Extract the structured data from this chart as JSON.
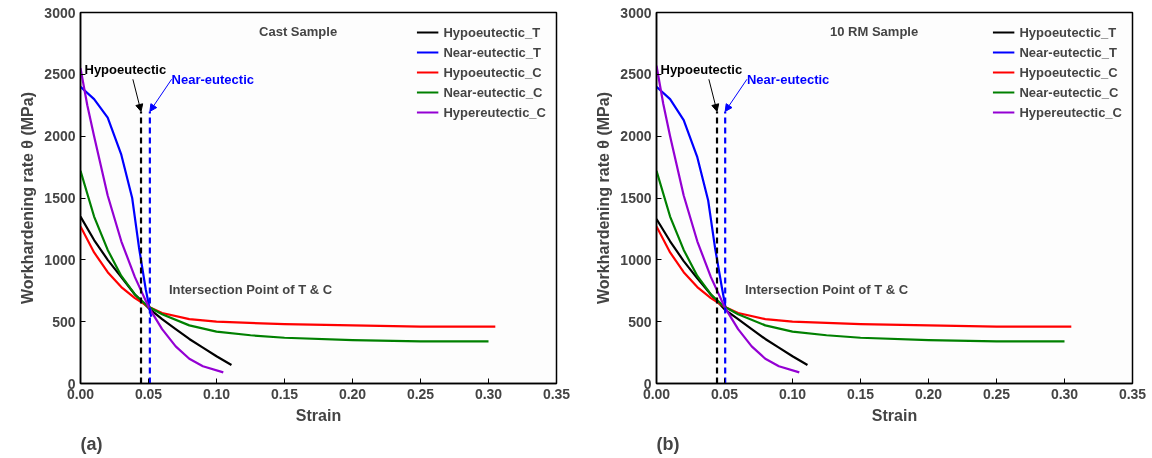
{
  "chart_data": [
    {
      "type": "line",
      "title": "Cast Sample",
      "xlabel": "Strain",
      "ylabel": "Workhardening rate θ (MPa)",
      "xlim": [
        0,
        0.35
      ],
      "xticks": [
        {
          "value": 0,
          "label": "0.00"
        },
        {
          "value": 0.05,
          "label": "0.05"
        },
        {
          "value": 0.1,
          "label": "0.10"
        },
        {
          "value": 0.15,
          "label": "0.15"
        },
        {
          "value": 0.2,
          "label": "0.20"
        },
        {
          "value": 0.25,
          "label": "0.25"
        },
        {
          "value": 0.3,
          "label": "0.30"
        },
        {
          "value": 0.35,
          "label": "0.35"
        }
      ],
      "ylim": [
        0,
        3000
      ],
      "yticks": [
        0,
        500,
        1000,
        1500,
        2000,
        2500,
        3000
      ],
      "grid": false,
      "legend": "top right",
      "annotations": [
        {
          "text": "Hypoeutectic",
          "x": 0.0445,
          "y": 2200
        },
        {
          "text": "Near-eutectic",
          "x": 0.051,
          "y": 2200
        },
        "Intersection Point of T & C",
        "(a)"
      ],
      "series": [
        {
          "name": "Hypoeutectic_T",
          "color": "#000000",
          "x": [
            0,
            0.01,
            0.02,
            0.03,
            0.04,
            0.05,
            0.06,
            0.07,
            0.08,
            0.09,
            0.1,
            0.111
          ],
          "values": [
            1350,
            1160,
            1000,
            860,
            720,
            610,
            520,
            440,
            360,
            290,
            220,
            150
          ]
        },
        {
          "name": "Near-eutectic_T",
          "color": "#0000ff",
          "x": [
            0,
            0.01,
            0.02,
            0.03,
            0.038,
            0.043,
            0.048,
            0.052
          ],
          "values": [
            2400,
            2300,
            2150,
            1850,
            1500,
            1100,
            760,
            540
          ]
        },
        {
          "name": "Hypoeutectic_C",
          "color": "#ff0000",
          "x": [
            0,
            0.01,
            0.02,
            0.03,
            0.04,
            0.05,
            0.06,
            0.08,
            0.1,
            0.15,
            0.2,
            0.25,
            0.305
          ],
          "values": [
            1270,
            1060,
            900,
            780,
            690,
            620,
            570,
            520,
            500,
            480,
            470,
            460,
            460
          ]
        },
        {
          "name": "Near-eutectic_C",
          "color": "#008000",
          "x": [
            0,
            0.01,
            0.02,
            0.03,
            0.04,
            0.05,
            0.06,
            0.08,
            0.1,
            0.125,
            0.15,
            0.2,
            0.25,
            0.3
          ],
          "values": [
            1720,
            1350,
            1080,
            870,
            720,
            620,
            560,
            470,
            420,
            390,
            370,
            350,
            340,
            340
          ]
        },
        {
          "name": "Hypereutectic_C",
          "color": "#9400d3",
          "x": [
            0,
            0.005,
            0.01,
            0.02,
            0.03,
            0.04,
            0.05,
            0.06,
            0.07,
            0.08,
            0.09,
            0.105
          ],
          "values": [
            2550,
            2250,
            2000,
            1520,
            1150,
            860,
            620,
            440,
            300,
            200,
            140,
            90
          ]
        },
        {
          "color": "#000000",
          "line_style": "dashed",
          "x": [
            0.0445,
            0.0445
          ],
          "values": [
            0,
            2200
          ]
        },
        {
          "color": "#0000ff",
          "line_style": "dashed",
          "x": [
            0.051,
            0.051
          ],
          "values": [
            0,
            2200
          ]
        }
      ]
    },
    {
      "type": "line",
      "title": "10 RM Sample",
      "xlabel": "Strain",
      "ylabel": "Workhardening rate θ (MPa)",
      "xlim": [
        0,
        0.35
      ],
      "xticks": [
        {
          "value": 0,
          "label": "0.00"
        },
        {
          "value": 0.05,
          "label": "0.05"
        },
        {
          "value": 0.1,
          "label": "0.10"
        },
        {
          "value": 0.15,
          "label": "0.15"
        },
        {
          "value": 0.2,
          "label": "0.20"
        },
        {
          "value": 0.25,
          "label": "0.25"
        },
        {
          "value": 0.3,
          "label": "0.30"
        },
        {
          "value": 0.35,
          "label": "0.35"
        }
      ],
      "ylim": [
        0,
        3000
      ],
      "yticks": [
        0,
        500,
        1000,
        1500,
        2000,
        2500,
        3000
      ],
      "grid": false,
      "legend": "top right",
      "annotations": [
        {
          "text": "Hypoeutectic",
          "x": 0.0445,
          "y": 2200
        },
        {
          "text": "Near-eutectic",
          "x": 0.0505,
          "y": 2200
        },
        "Intersection Point of T & C",
        "(b)"
      ],
      "series": [
        {
          "name": "Hypoeutectic_T",
          "color": "#000000",
          "x": [
            0,
            0.01,
            0.02,
            0.03,
            0.04,
            0.05,
            0.06,
            0.07,
            0.08,
            0.09,
            0.1,
            0.111
          ],
          "values": [
            1330,
            1150,
            990,
            850,
            720,
            600,
            520,
            440,
            360,
            290,
            220,
            150
          ]
        },
        {
          "name": "Near-eutectic_T",
          "color": "#0000ff",
          "x": [
            0,
            0.01,
            0.02,
            0.03,
            0.038,
            0.043,
            0.048,
            0.051
          ],
          "values": [
            2400,
            2300,
            2130,
            1830,
            1480,
            1100,
            780,
            600
          ]
        },
        {
          "name": "Hypoeutectic_C",
          "color": "#ff0000",
          "x": [
            0,
            0.01,
            0.02,
            0.03,
            0.04,
            0.05,
            0.06,
            0.08,
            0.1,
            0.15,
            0.2,
            0.25,
            0.305
          ],
          "values": [
            1270,
            1060,
            900,
            780,
            690,
            620,
            570,
            520,
            500,
            480,
            470,
            460,
            460
          ]
        },
        {
          "name": "Near-eutectic_C",
          "color": "#008000",
          "x": [
            0,
            0.01,
            0.02,
            0.03,
            0.04,
            0.05,
            0.06,
            0.08,
            0.1,
            0.125,
            0.15,
            0.2,
            0.25,
            0.3
          ],
          "values": [
            1720,
            1350,
            1080,
            870,
            720,
            620,
            560,
            470,
            420,
            390,
            370,
            350,
            340,
            340
          ]
        },
        {
          "name": "Hypereutectic_C",
          "color": "#9400d3",
          "x": [
            0,
            0.005,
            0.01,
            0.02,
            0.03,
            0.04,
            0.05,
            0.06,
            0.07,
            0.08,
            0.09,
            0.105
          ],
          "values": [
            2570,
            2260,
            2000,
            1520,
            1150,
            860,
            620,
            440,
            300,
            200,
            140,
            90
          ]
        },
        {
          "color": "#000000",
          "line_style": "dashed",
          "x": [
            0.0445,
            0.0445
          ],
          "values": [
            0,
            2200
          ]
        },
        {
          "color": "#0000ff",
          "line_style": "dashed",
          "x": [
            0.0505,
            0.0505
          ],
          "values": [
            0,
            2200
          ]
        }
      ]
    }
  ]
}
